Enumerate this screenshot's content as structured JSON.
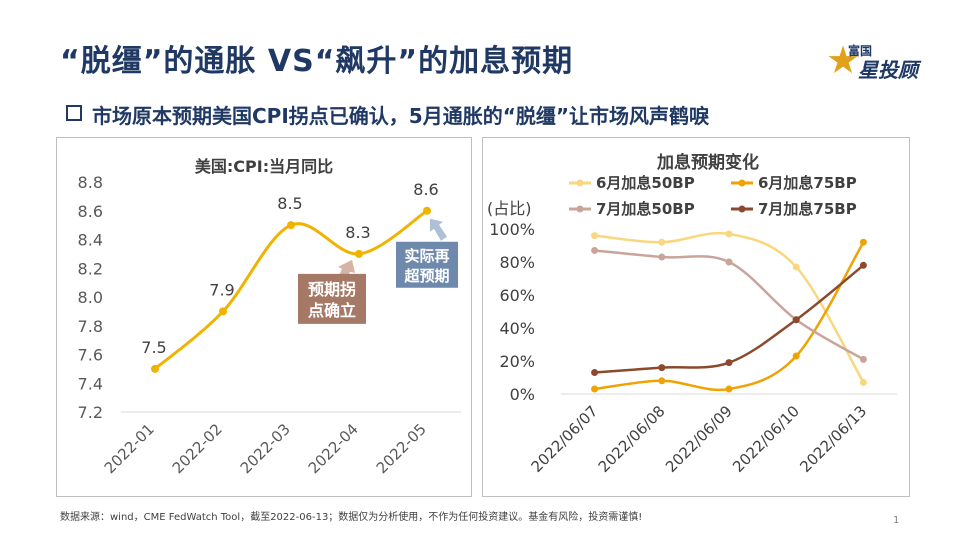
{
  "slide": {
    "title": "“脱缰”的通胀 VS“飙升”的加息预期",
    "subtitle": "市场原本预期美国CPI拐点已确认，5月通胀的“脱缰”让市场风声鹤唳",
    "footnote": "数据来源：wind，CME FedWatch Tool，截至2022-06-13；数据仅为分析使用，不作为任何投资建议。基金有风险，投资需谨慎!",
    "page_number": "1",
    "logo": {
      "line1": "富国",
      "line2": "星投顾"
    }
  },
  "colors": {
    "navy": "#1f3864",
    "cpi_line": "#f0b400",
    "callout_brown": "#a67966",
    "callout_blue": "#6f89ad",
    "arrow_brown": "#d6b3a6",
    "arrow_blue": "#aebfd6"
  },
  "chart_data": [
    {
      "type": "line",
      "title": "美国:CPI:当月同比",
      "categories": [
        "2022-01",
        "2022-02",
        "2022-03",
        "2022-04",
        "2022-05"
      ],
      "series": [
        {
          "values": [
            7.5,
            7.9,
            8.5,
            8.3,
            8.6
          ],
          "color": "#f0b400"
        }
      ],
      "data_labels": [
        "7.5",
        "7.9",
        "8.5",
        "8.3",
        "8.6"
      ],
      "ylim": [
        7.2,
        8.8
      ],
      "yticks": [
        "7.2",
        "7.4",
        "7.6",
        "7.8",
        "8.0",
        "8.2",
        "8.4",
        "8.6",
        "8.8"
      ],
      "grid": false,
      "smooth": true,
      "annotations": [
        {
          "text": "预期拐点确立",
          "target": "2022-04"
        },
        {
          "text": "实际再超预期",
          "target": "2022-05"
        }
      ]
    },
    {
      "type": "line",
      "title": "加息预期变化",
      "ylabel": "(占比)",
      "categories": [
        "2022/06/07",
        "2022/06/08",
        "2022/06/09",
        "2022/06/10",
        "2022/06/13"
      ],
      "ylim": [
        0,
        100
      ],
      "yticks": [
        "0%",
        "20%",
        "40%",
        "60%",
        "80%",
        "100%"
      ],
      "grid": false,
      "smooth": true,
      "legend_position": "top",
      "series": [
        {
          "name": "6月加息50BP",
          "values": [
            96,
            92,
            97,
            77,
            7
          ],
          "color": "#f9d77e"
        },
        {
          "name": "6月加息75BP",
          "values": [
            3,
            8,
            3,
            23,
            92
          ],
          "color": "#f0a202"
        },
        {
          "name": "7月加息50BP",
          "values": [
            87,
            83,
            80,
            45,
            21
          ],
          "color": "#c8a49a"
        },
        {
          "name": "7月加息75BP",
          "values": [
            13,
            16,
            19,
            45,
            78
          ],
          "color": "#8b4a2e"
        }
      ]
    }
  ]
}
